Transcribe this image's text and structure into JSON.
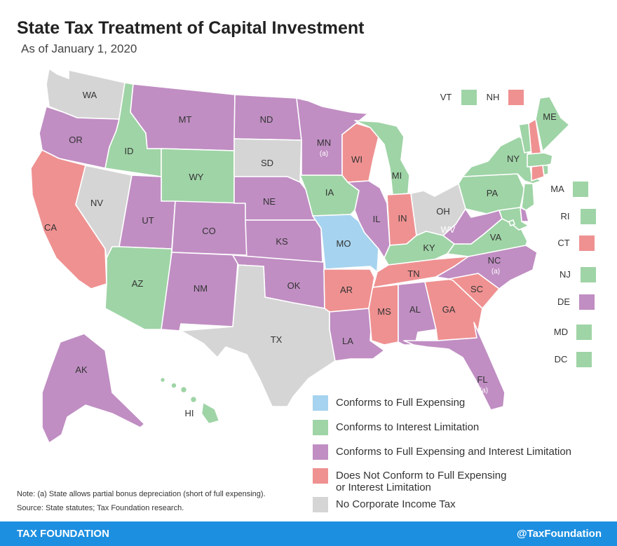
{
  "header": {
    "title": "State Tax Treatment of Capital Investment",
    "subtitle": "As of January 1, 2020"
  },
  "colors": {
    "full_expensing": "#a6d3ef",
    "interest_limitation": "#9fd4a6",
    "both": "#c08ec3",
    "neither": "#ef9191",
    "no_tax": "#d5d5d5",
    "footer": "#1d8fe0"
  },
  "states": [
    {
      "abbr": "WA",
      "category": "no_tax"
    },
    {
      "abbr": "OR",
      "category": "both"
    },
    {
      "abbr": "CA",
      "category": "neither"
    },
    {
      "abbr": "ID",
      "category": "interest_limitation"
    },
    {
      "abbr": "NV",
      "category": "no_tax"
    },
    {
      "abbr": "MT",
      "category": "both"
    },
    {
      "abbr": "WY",
      "category": "interest_limitation"
    },
    {
      "abbr": "UT",
      "category": "both"
    },
    {
      "abbr": "AZ",
      "category": "interest_limitation"
    },
    {
      "abbr": "CO",
      "category": "both"
    },
    {
      "abbr": "NM",
      "category": "both"
    },
    {
      "abbr": "ND",
      "category": "both"
    },
    {
      "abbr": "SD",
      "category": "no_tax"
    },
    {
      "abbr": "NE",
      "category": "both"
    },
    {
      "abbr": "KS",
      "category": "both"
    },
    {
      "abbr": "OK",
      "category": "both"
    },
    {
      "abbr": "TX",
      "category": "no_tax"
    },
    {
      "abbr": "MN",
      "category": "both",
      "note": "(a)"
    },
    {
      "abbr": "IA",
      "category": "interest_limitation"
    },
    {
      "abbr": "MO",
      "category": "full_expensing"
    },
    {
      "abbr": "AR",
      "category": "neither"
    },
    {
      "abbr": "LA",
      "category": "both"
    },
    {
      "abbr": "WI",
      "category": "neither"
    },
    {
      "abbr": "IL",
      "category": "both"
    },
    {
      "abbr": "MI",
      "category": "interest_limitation"
    },
    {
      "abbr": "IN",
      "category": "neither"
    },
    {
      "abbr": "OH",
      "category": "no_tax"
    },
    {
      "abbr": "KY",
      "category": "interest_limitation"
    },
    {
      "abbr": "TN",
      "category": "neither"
    },
    {
      "abbr": "MS",
      "category": "neither"
    },
    {
      "abbr": "AL",
      "category": "both"
    },
    {
      "abbr": "GA",
      "category": "neither"
    },
    {
      "abbr": "FL",
      "category": "both",
      "note": "(a)"
    },
    {
      "abbr": "SC",
      "category": "neither"
    },
    {
      "abbr": "NC",
      "category": "both",
      "note": "(a)"
    },
    {
      "abbr": "VA",
      "category": "interest_limitation"
    },
    {
      "abbr": "WV",
      "category": "both"
    },
    {
      "abbr": "PA",
      "category": "interest_limitation"
    },
    {
      "abbr": "NY",
      "category": "interest_limitation"
    },
    {
      "abbr": "ME",
      "category": "interest_limitation"
    },
    {
      "abbr": "VT",
      "category": "interest_limitation"
    },
    {
      "abbr": "NH",
      "category": "neither"
    },
    {
      "abbr": "MA",
      "category": "interest_limitation"
    },
    {
      "abbr": "RI",
      "category": "interest_limitation"
    },
    {
      "abbr": "CT",
      "category": "neither"
    },
    {
      "abbr": "NJ",
      "category": "interest_limitation"
    },
    {
      "abbr": "DE",
      "category": "both"
    },
    {
      "abbr": "MD",
      "category": "interest_limitation"
    },
    {
      "abbr": "DC",
      "category": "interest_limitation"
    },
    {
      "abbr": "AK",
      "category": "both"
    },
    {
      "abbr": "HI",
      "category": "interest_limitation"
    }
  ],
  "legend": [
    {
      "key": "full_expensing",
      "label": "Conforms to Full Expensing"
    },
    {
      "key": "interest_limitation",
      "label": "Conforms to Interest Limitation"
    },
    {
      "key": "both",
      "label": "Conforms to Full Expensing and Interest Limitation"
    },
    {
      "key": "neither",
      "label": "Does Not Conform to Full Expensing\nor Interest Limitation"
    },
    {
      "key": "no_tax",
      "label": "No Corporate Income Tax"
    }
  ],
  "note": "Note: (a) State allows partial bonus depreciation (short of full expensing).",
  "source": "Source: State statutes; Tax Foundation research.",
  "footer": {
    "left": "TAX FOUNDATION",
    "right": "@TaxFoundation"
  }
}
